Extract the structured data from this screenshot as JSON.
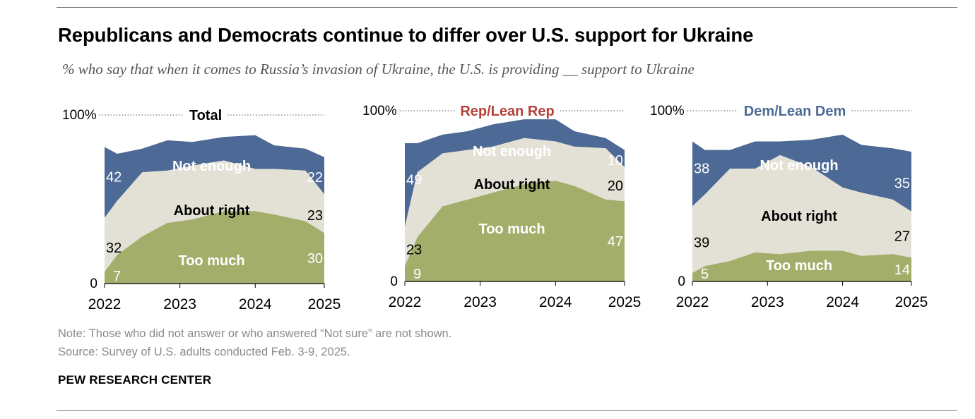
{
  "title": "Republicans and Democrats continue to differ over U.S. support for Ukraine",
  "subtitle": "% who say that when it comes to Russia’s invasion of Ukraine, the U.S. is providing __ support to Ukraine",
  "note": "Note: Those who did not answer or who answered “Not sure” are not shown.",
  "source": "Source: Survey of U.S. adults conducted Feb. 3-9, 2025.",
  "brand": "PEW RESEARCH CENTER",
  "colors": {
    "not_enough": "#4C6A95",
    "about_right": "#E3E1D6",
    "too_much": "#A3AE6B",
    "rep_accent": "#B6403A",
    "dem_accent": "#4C6A95",
    "axis": "#000000",
    "dotted": "#8a8a8a"
  },
  "chart_data": [
    {
      "type": "area",
      "stacked": true,
      "panel": "Total",
      "label": "Total",
      "ylim": [
        0,
        100
      ],
      "y_ticks": [
        "0",
        "100%"
      ],
      "x_ticks": [
        "2022",
        "2023",
        "2024",
        "2025"
      ],
      "x_range": [
        "2022-03",
        "2025-02"
      ],
      "x": [
        "2022-03",
        "2022-05",
        "2022-09",
        "2023-01",
        "2023-05",
        "2023-10",
        "2024-03",
        "2024-06",
        "2024-11",
        "2025-02"
      ],
      "series": [
        {
          "name": "Too much",
          "values": [
            7,
            17,
            28,
            36,
            38,
            43,
            43,
            41,
            37,
            30
          ]
        },
        {
          "name": "About right",
          "values": [
            32,
            32,
            38,
            31,
            32,
            30,
            25,
            27,
            30,
            23
          ]
        },
        {
          "name": "Not enough",
          "values": [
            42,
            28,
            14,
            18,
            14,
            14,
            20,
            14,
            13,
            22
          ]
        }
      ],
      "labels": {
        "not_enough": "42",
        "about_right": "32",
        "too_much": "7",
        "not_enough_end": "22",
        "about_right_end": "23",
        "too_much_end": "30"
      },
      "area_labels": [
        "Not enough",
        "About right",
        "Too much"
      ]
    },
    {
      "type": "area",
      "stacked": true,
      "panel": "Rep/Lean Rep",
      "label": "Rep/Lean Rep",
      "ylim": [
        0,
        100
      ],
      "y_ticks": [
        "0",
        "100%"
      ],
      "x_ticks": [
        "2022",
        "2023",
        "2024",
        "2025"
      ],
      "x_range": [
        "2022-03",
        "2025-02"
      ],
      "x": [
        "2022-03",
        "2022-05",
        "2022-09",
        "2023-01",
        "2023-05",
        "2023-10",
        "2024-03",
        "2024-06",
        "2024-11",
        "2025-02"
      ],
      "series": [
        {
          "name": "Too much",
          "values": [
            9,
            26,
            44,
            48,
            52,
            57,
            59,
            56,
            48,
            47
          ]
        },
        {
          "name": "About right",
          "values": [
            23,
            38,
            31,
            29,
            27,
            27,
            23,
            23,
            30,
            20
          ]
        },
        {
          "name": "Not enough",
          "values": [
            49,
            17,
            11,
            11,
            13,
            11,
            13,
            9,
            6,
            10
          ]
        }
      ],
      "labels": {
        "not_enough": "49",
        "about_right": "23",
        "too_much": "9",
        "not_enough_end": "10",
        "about_right_end": "20",
        "too_much_end": "47"
      },
      "area_labels": [
        "Not enough",
        "About right",
        "Too much"
      ]
    },
    {
      "type": "area",
      "stacked": true,
      "panel": "Dem/Lean Dem",
      "label": "Dem/Lean Dem",
      "ylim": [
        0,
        100
      ],
      "y_ticks": [
        "0",
        "100%"
      ],
      "x_ticks": [
        "2022",
        "2023",
        "2024",
        "2025"
      ],
      "x_range": [
        "2022-03",
        "2025-02"
      ],
      "x": [
        "2022-03",
        "2022-05",
        "2022-09",
        "2023-01",
        "2023-05",
        "2023-10",
        "2024-03",
        "2024-06",
        "2024-11",
        "2025-02"
      ],
      "series": [
        {
          "name": "Too much",
          "values": [
            5,
            9,
            12,
            17,
            16,
            18,
            18,
            15,
            16,
            14
          ]
        },
        {
          "name": "About right",
          "values": [
            39,
            42,
            54,
            49,
            58,
            49,
            37,
            37,
            32,
            27
          ]
        },
        {
          "name": "Not enough",
          "values": [
            38,
            26,
            11,
            16,
            8,
            16,
            31,
            28,
            30,
            35
          ]
        }
      ],
      "labels": {
        "not_enough": "38",
        "about_right": "39",
        "too_much": "5",
        "not_enough_end": "35",
        "about_right_end": "27",
        "too_much_end": "14"
      },
      "area_labels": [
        "Not enough",
        "About right",
        "Too much"
      ]
    }
  ]
}
